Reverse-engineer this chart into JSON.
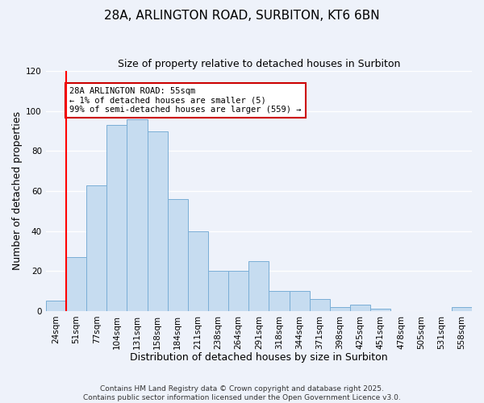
{
  "title_line1": "28A, ARLINGTON ROAD, SURBITON, KT6 6BN",
  "title_line2": "Size of property relative to detached houses in Surbiton",
  "xlabel": "Distribution of detached houses by size in Surbiton",
  "ylabel": "Number of detached properties",
  "ylim": [
    0,
    120
  ],
  "yticks": [
    0,
    20,
    40,
    60,
    80,
    100,
    120
  ],
  "bin_labels": [
    "24sqm",
    "51sqm",
    "77sqm",
    "104sqm",
    "131sqm",
    "158sqm",
    "184sqm",
    "211sqm",
    "238sqm",
    "264sqm",
    "291sqm",
    "318sqm",
    "344sqm",
    "371sqm",
    "398sqm",
    "425sqm",
    "451sqm",
    "478sqm",
    "505sqm",
    "531sqm",
    "558sqm"
  ],
  "bar_heights": [
    5,
    27,
    63,
    93,
    96,
    90,
    56,
    40,
    20,
    20,
    25,
    10,
    10,
    6,
    2,
    3,
    1,
    0,
    0,
    0,
    2
  ],
  "bar_color": "#c6dcf0",
  "bar_edge_color": "#7aaed6",
  "red_line_x": 0.5,
  "annotation_text": "28A ARLINGTON ROAD: 55sqm\n← 1% of detached houses are smaller (5)\n99% of semi-detached houses are larger (559) →",
  "annotation_box_color": "#ffffff",
  "annotation_box_edge_color": "#cc0000",
  "footer_line1": "Contains HM Land Registry data © Crown copyright and database right 2025.",
  "footer_line2": "Contains public sector information licensed under the Open Government Licence v3.0.",
  "bg_color": "#eef2fa",
  "grid_color": "#ffffff",
  "title_fontsize": 11,
  "subtitle_fontsize": 9,
  "axis_label_fontsize": 9,
  "tick_fontsize": 7.5,
  "annotation_fontsize": 7.5,
  "footer_fontsize": 6.5
}
